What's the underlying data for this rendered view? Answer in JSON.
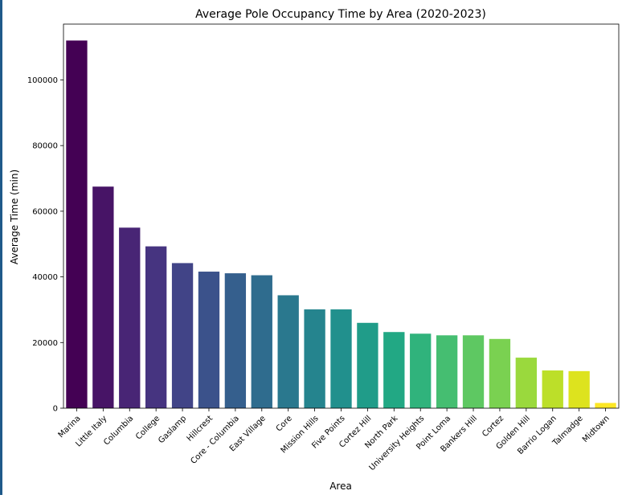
{
  "chart_data": {
    "type": "bar",
    "title": "Average Pole Occupancy Time by Area (2020-2023)",
    "xlabel": "Area",
    "ylabel": "Average Time (min)",
    "ylim": [
      0,
      117000
    ],
    "yticks": [
      0,
      20000,
      40000,
      60000,
      80000,
      100000
    ],
    "categories": [
      "Marina",
      "Little Italy",
      "Columbia",
      "College",
      "Gaslamp",
      "Hillcrest",
      "Core - Columbia",
      "East Village",
      "Core",
      "Mission Hills",
      "Five Points",
      "Cortez Hill",
      "North Park",
      "University Heights",
      "Point Loma",
      "Bankers Hill",
      "Cortez",
      "Golden Hill",
      "Barrio Logan",
      "Talmadge",
      "Midtown"
    ],
    "values": [
      112000,
      67500,
      55000,
      49300,
      44200,
      41600,
      41100,
      40500,
      34400,
      30100,
      30100,
      26000,
      23200,
      22700,
      22200,
      22200,
      21100,
      15400,
      11500,
      11300,
      1600
    ],
    "colors": [
      "#440154",
      "#481a6c",
      "#472f7d",
      "#414487",
      "#39568c",
      "#31688e",
      "#2a788e",
      "#23888e",
      "#1f988b",
      "#22a884",
      "#35b779",
      "#54c568",
      "#7ad151",
      "#a5db36",
      "#d2e21b",
      "#fde725",
      "#2a788e",
      "#1f988b",
      "#22a884",
      "#35b779",
      "#54c568"
    ],
    "grid": false,
    "legend": "none"
  }
}
